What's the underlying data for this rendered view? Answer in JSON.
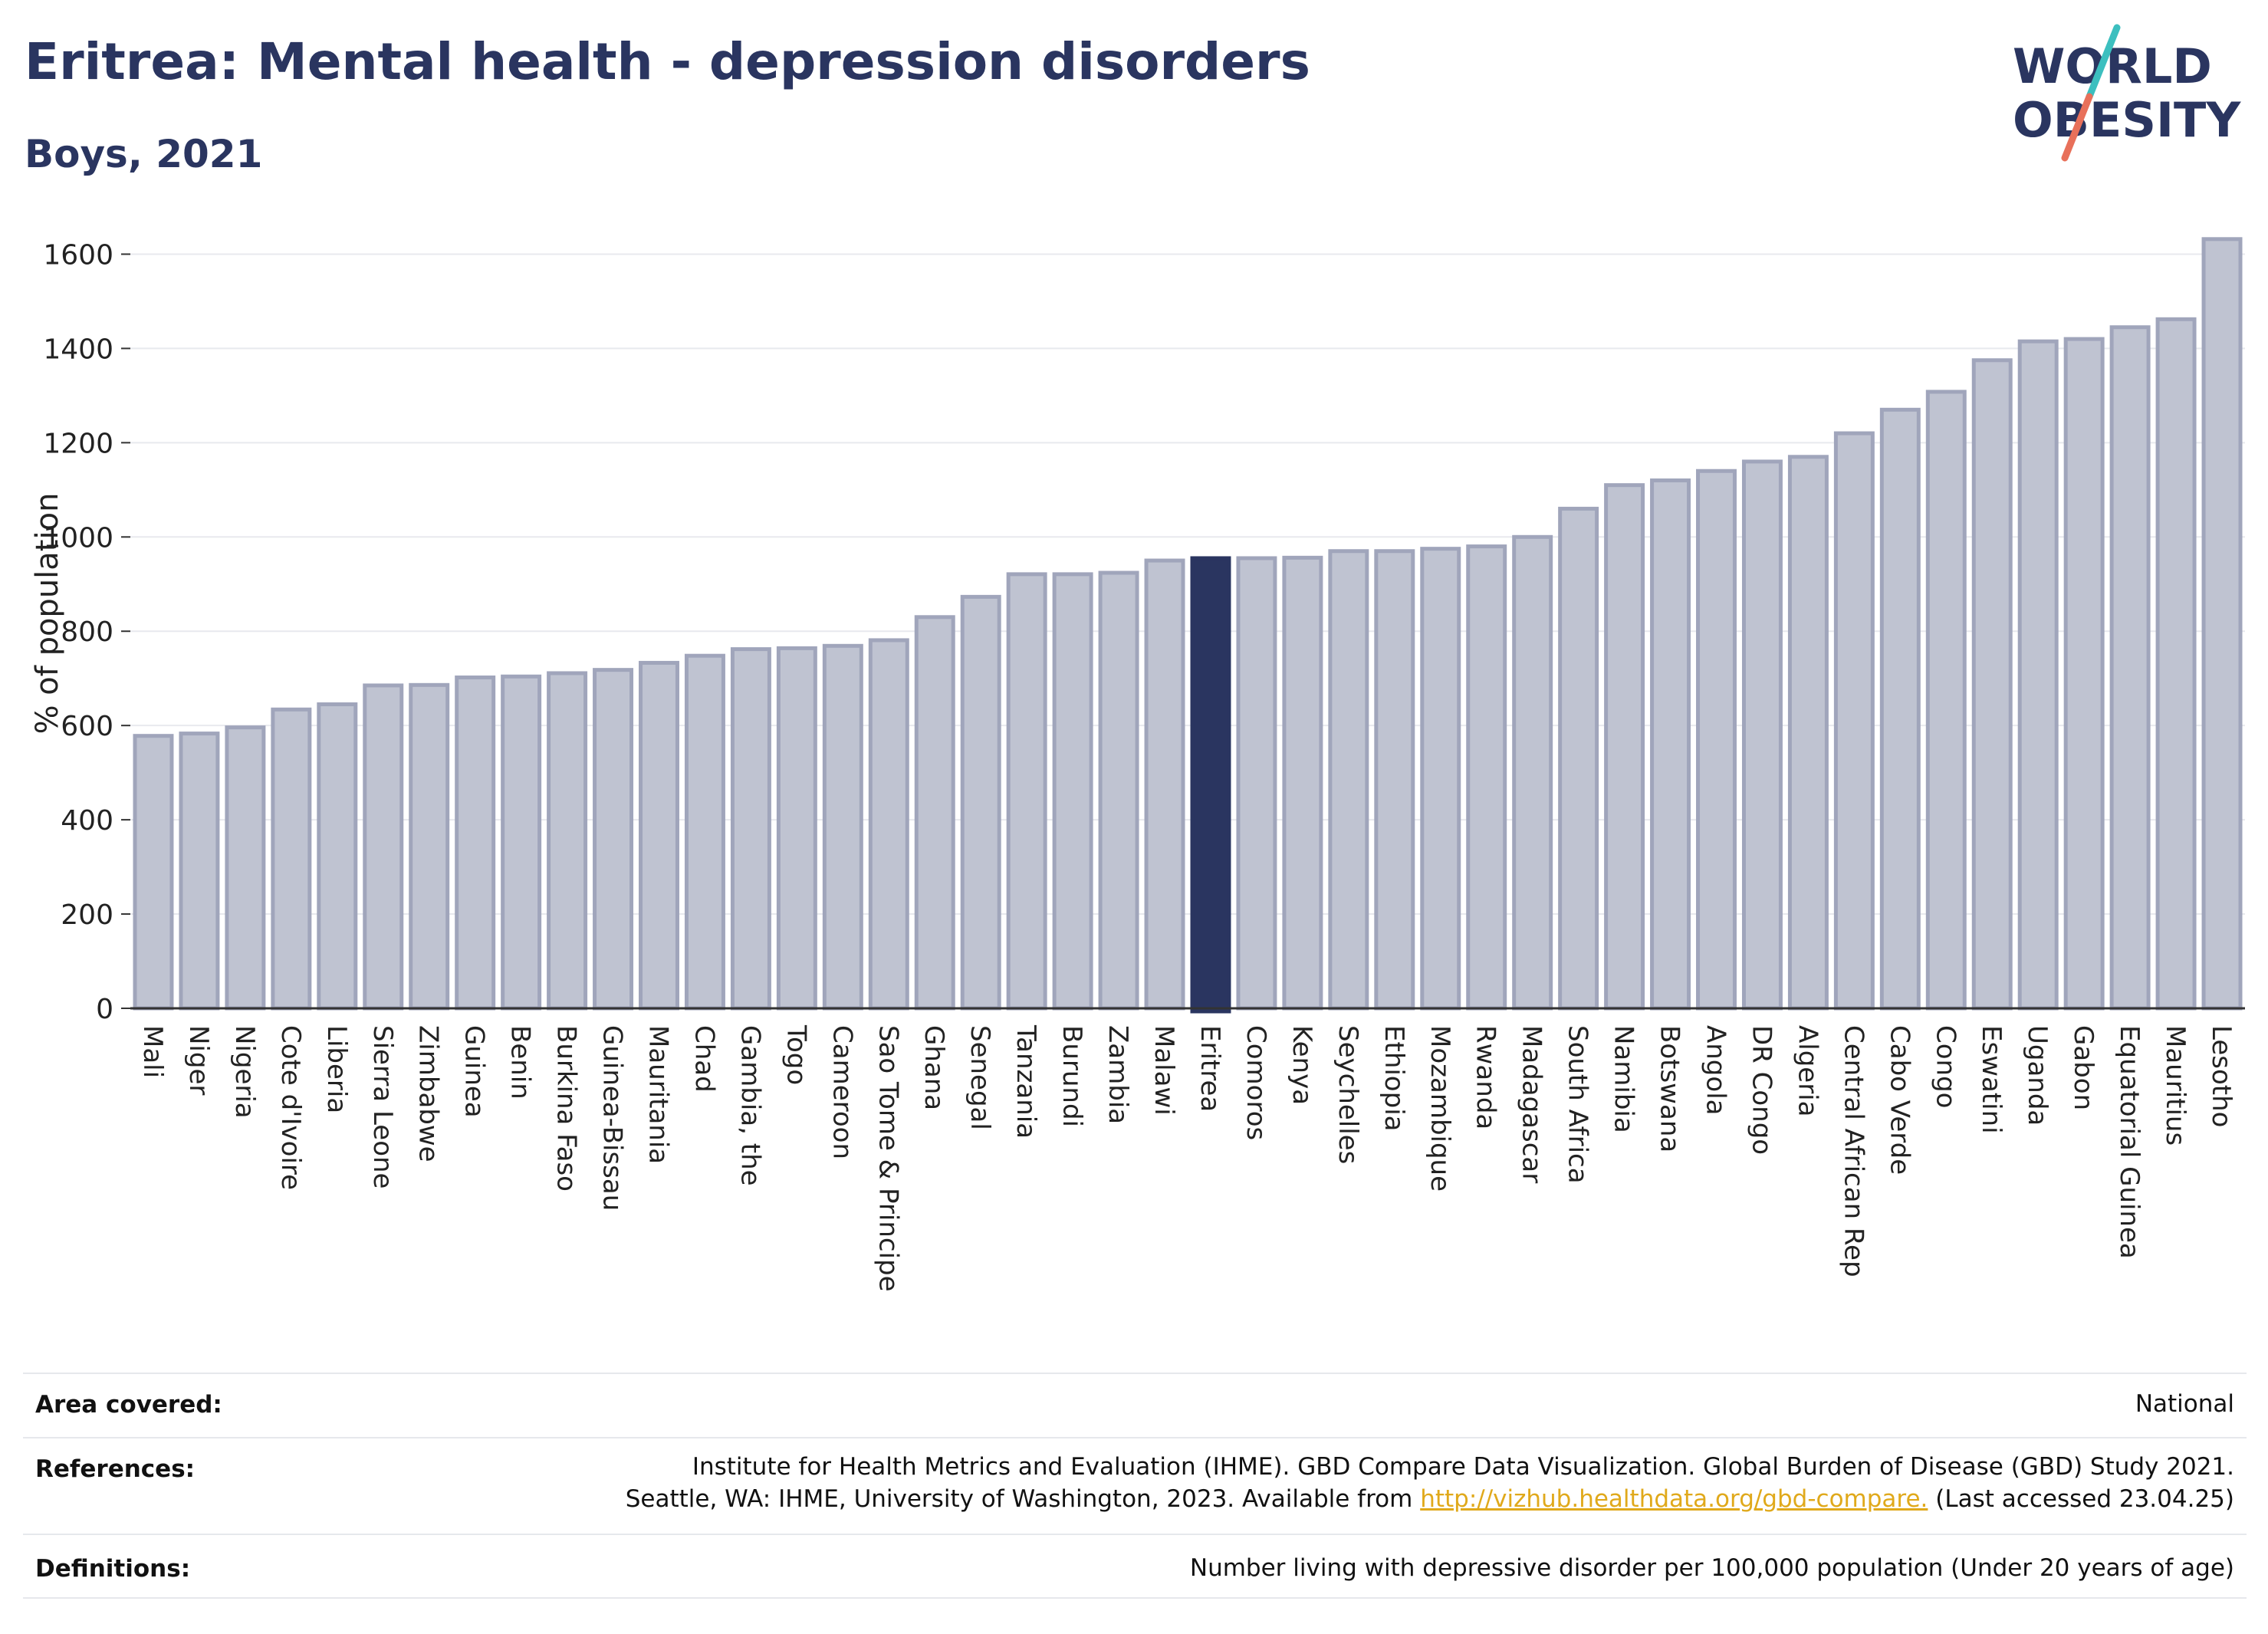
{
  "title": "Eritrea: Mental health - depression disorders",
  "subtitle": "Boys, 2021",
  "logo": {
    "line1": "WORLD",
    "line2": "OBESITY",
    "accent_teal": "#3cbfbf",
    "accent_coral": "#e8705a"
  },
  "colors": {
    "bar": "#bfc3d1",
    "bar_stroke": "#a0a5bb",
    "highlight": "#2a3560",
    "axis_text": "#222222",
    "grid": "#e8e9ee"
  },
  "chart_data": {
    "type": "bar",
    "ylabel": "% of population",
    "ylim": [
      0,
      1700
    ],
    "yticks": [
      0,
      200,
      400,
      600,
      800,
      1000,
      1200,
      1400,
      1600
    ],
    "highlight": "Eritrea",
    "grid": true,
    "categories": [
      "Mali",
      "Niger",
      "Nigeria",
      "Cote d'Ivoire",
      "Liberia",
      "Sierra Leone",
      "Zimbabwe",
      "Guinea",
      "Benin",
      "Burkina Faso",
      "Guinea-Bissau",
      "Mauritania",
      "Chad",
      "Gambia, the",
      "Togo",
      "Cameroon",
      "Sao Tome & Principe",
      "Ghana",
      "Senegal",
      "Tanzania",
      "Burundi",
      "Zambia",
      "Malawi",
      "Eritrea",
      "Comoros",
      "Kenya",
      "Seychelles",
      "Ethiopia",
      "Mozambique",
      "Rwanda",
      "Madagascar",
      "South Africa",
      "Namibia",
      "Botswana",
      "Angola",
      "DR Congo",
      "Algeria",
      "Central African Rep",
      "Cabo Verde",
      "Congo",
      "Eswatini",
      "Uganda",
      "Gabon",
      "Equatorial Guinea",
      "Mauritius",
      "Lesotho"
    ],
    "values": [
      578,
      583,
      596,
      634,
      645,
      685,
      686,
      702,
      704,
      711,
      718,
      733,
      748,
      762,
      764,
      769,
      781,
      830,
      873,
      921,
      921,
      924,
      950,
      955,
      955,
      956,
      970,
      970,
      975,
      980,
      1000,
      1060,
      1110,
      1120,
      1140,
      1160,
      1170,
      1220,
      1270,
      1308,
      1375,
      1415,
      1420,
      1445,
      1462,
      1632
    ]
  },
  "info": {
    "area": {
      "label": "Area covered:",
      "value": "National"
    },
    "references": {
      "label": "References:",
      "line1": "Institute for Health Metrics and Evaluation (IHME). GBD Compare Data Visualization. Global Burden of Disease (GBD) Study 2021.",
      "line2_pre": "Seattle, WA: IHME, University of Washington, 2023. Available from ",
      "link": "http://vizhub.healthdata.org/gbd-compare.",
      "line2_post": " (Last accessed 23.04.25)"
    },
    "definitions": {
      "label": "Definitions:",
      "value": "Number living with depressive disorder per 100,000 population (Under 20 years of age)"
    }
  }
}
